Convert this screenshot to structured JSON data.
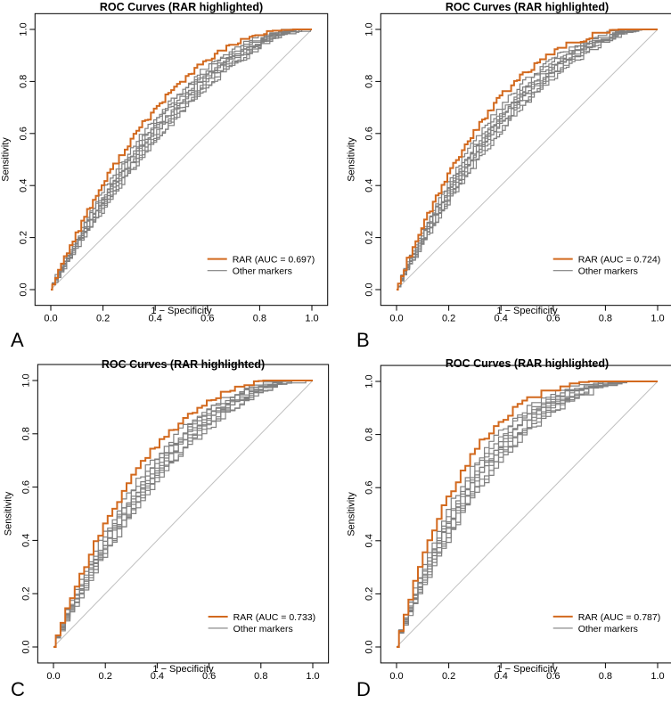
{
  "chart_data": [
    {
      "panel": "A",
      "type": "line",
      "title": "ROC Curves (RAR highlighted)",
      "xlabel": "1 − Specificity",
      "ylabel": "Sensitivity",
      "xlim": [
        0,
        1
      ],
      "ylim": [
        0,
        1
      ],
      "xticks": [
        "0.0",
        "0.2",
        "0.4",
        "0.6",
        "0.8",
        "1.0"
      ],
      "yticks": [
        "0.0",
        "0.2",
        "0.4",
        "0.6",
        "0.8",
        "1.0"
      ],
      "legend_position": "bottom-right",
      "colors": {
        "highlight": "#D2691E",
        "other": "#808080",
        "diagonal": "#C0C0C0"
      },
      "series": [
        {
          "name": "RAR (AUC = 0.697)",
          "role": "highlight",
          "auc": 0.697
        },
        {
          "name": "Other markers",
          "role": "other",
          "count": 9
        }
      ]
    },
    {
      "panel": "B",
      "type": "line",
      "title": "ROC Curves (RAR highlighted)",
      "xlabel": "1 − Specificity",
      "ylabel": "Sensitivity",
      "xlim": [
        0,
        1
      ],
      "ylim": [
        0,
        1
      ],
      "xticks": [
        "0.0",
        "0.2",
        "0.4",
        "0.6",
        "0.8",
        "1.0"
      ],
      "yticks": [
        "0.0",
        "0.2",
        "0.4",
        "0.6",
        "0.8",
        "1.0"
      ],
      "legend_position": "bottom-right",
      "colors": {
        "highlight": "#D2691E",
        "other": "#808080",
        "diagonal": "#C0C0C0"
      },
      "series": [
        {
          "name": "RAR (AUC = 0.724)",
          "role": "highlight",
          "auc": 0.724
        },
        {
          "name": "Other markers",
          "role": "other",
          "count": 9
        }
      ]
    },
    {
      "panel": "C",
      "type": "line",
      "title": "ROC Curves (RAR highlighted)",
      "xlabel": "1 − Specificity",
      "ylabel": "Sensitivity",
      "xlim": [
        0,
        1
      ],
      "ylim": [
        0,
        1
      ],
      "xticks": [
        "0.0",
        "0.2",
        "0.4",
        "0.6",
        "0.8",
        "1.0"
      ],
      "yticks": [
        "0.0",
        "0.2",
        "0.4",
        "0.6",
        "0.8",
        "1.0"
      ],
      "legend_position": "bottom-right",
      "colors": {
        "highlight": "#D2691E",
        "other": "#808080",
        "diagonal": "#C0C0C0"
      },
      "series": [
        {
          "name": "RAR (AUC = 0.733)",
          "role": "highlight",
          "auc": 0.733
        },
        {
          "name": "Other markers",
          "role": "other",
          "count": 9
        }
      ]
    },
    {
      "panel": "D",
      "type": "line",
      "title": "ROC Curves (RAR highlighted)",
      "xlabel": "1 − Specificity",
      "ylabel": "Sensitivity",
      "xlim": [
        0,
        1
      ],
      "ylim": [
        0,
        1
      ],
      "xticks": [
        "0.0",
        "0.2",
        "0.4",
        "0.6",
        "0.8",
        "1.0"
      ],
      "yticks": [
        "0.0",
        "0.2",
        "0.4",
        "0.6",
        "0.8",
        "1.0"
      ],
      "legend_position": "bottom-right",
      "colors": {
        "highlight": "#D2691E",
        "other": "#808080",
        "diagonal": "#C0C0C0"
      },
      "series": [
        {
          "name": "RAR (AUC = 0.787)",
          "role": "highlight",
          "auc": 0.787
        },
        {
          "name": "Other markers",
          "role": "other",
          "count": 9
        }
      ]
    }
  ]
}
